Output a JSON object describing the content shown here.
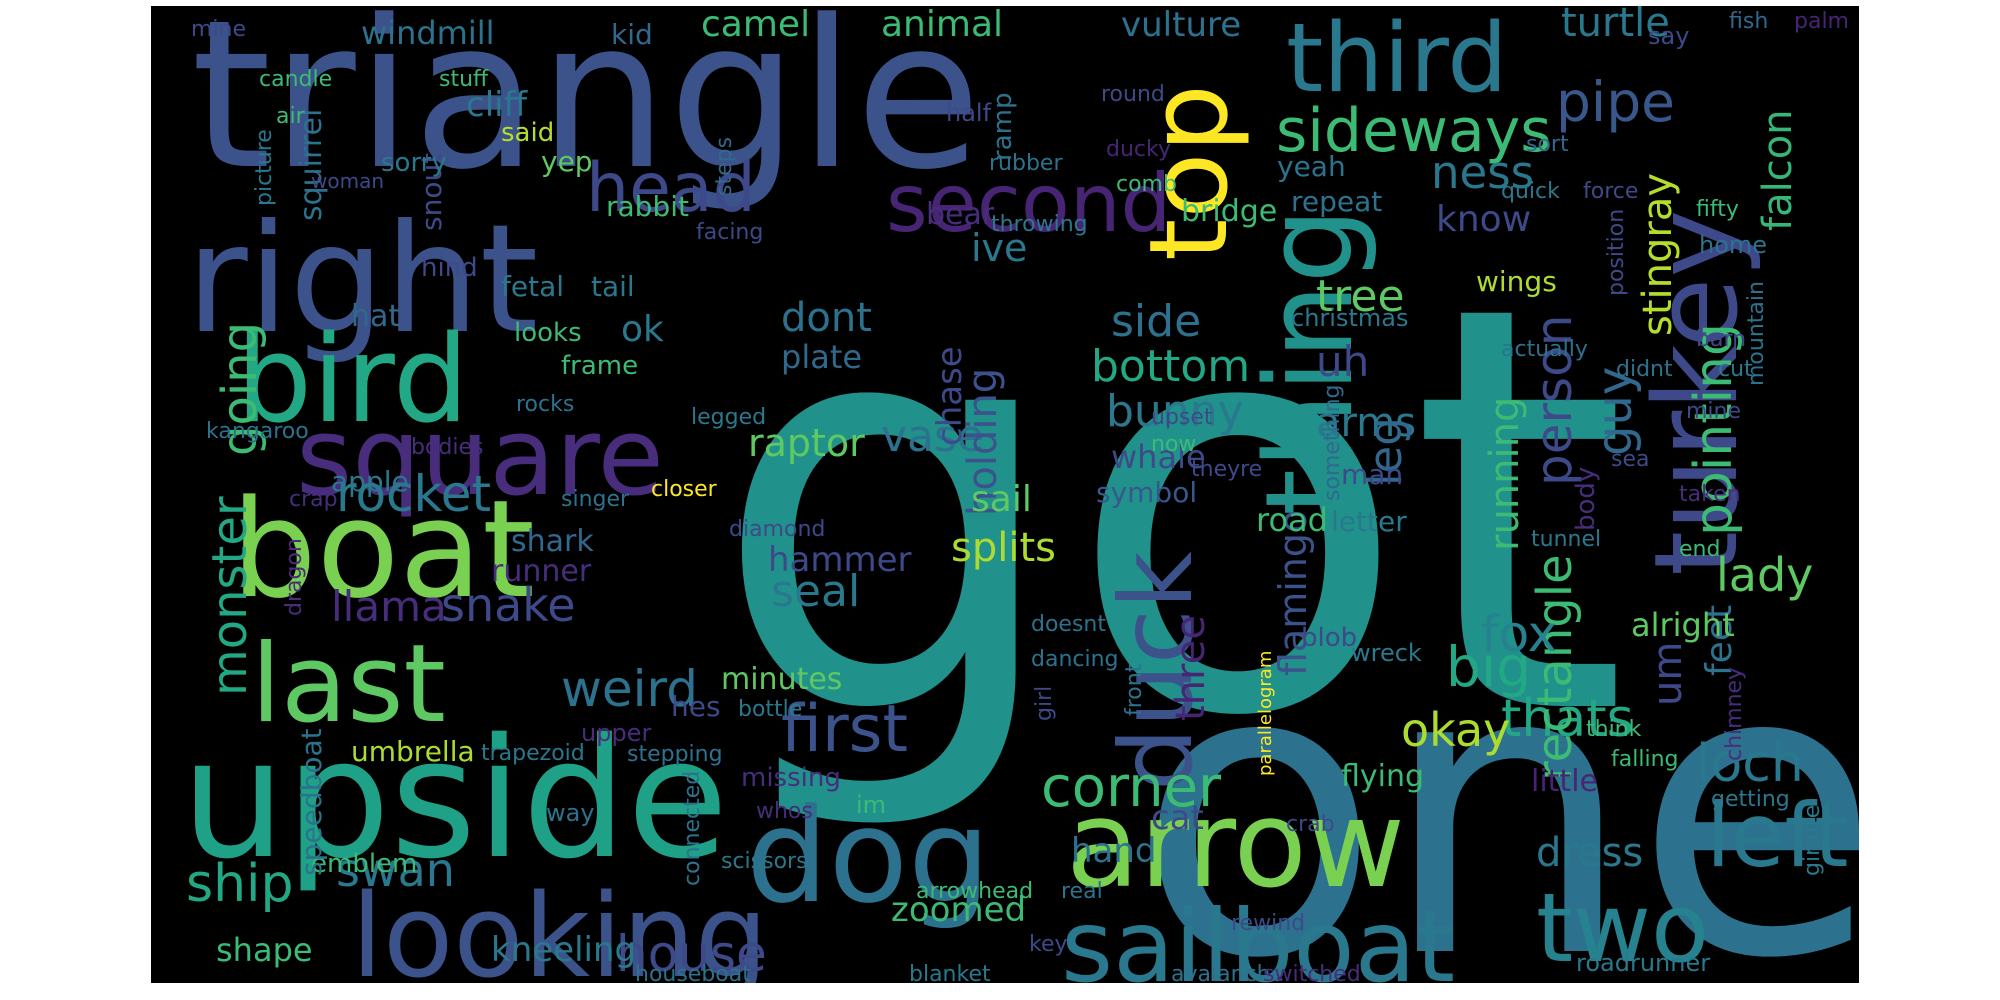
{
  "palette": {
    "teal": "#21918c",
    "teal_dark": "#2c728e",
    "blue": "#3b528b",
    "indigo": "#472d7b",
    "purple": "#440154",
    "green": "#5ec962",
    "lime": "#addc30",
    "yellow": "#fde725",
    "seagreen": "#28ae80",
    "navy": "#31688e"
  },
  "words": [
    {
      "text": "got",
      "color": "#21918c"
    },
    {
      "text": "one",
      "color": "#2c728e"
    },
    {
      "text": "triangle",
      "color": "#3b528b"
    },
    {
      "text": "right",
      "color": "#3b528b"
    },
    {
      "text": "boat",
      "color": "#7ad151"
    },
    {
      "text": "upside",
      "color": "#1fa187"
    },
    {
      "text": "bird",
      "color": "#22a884"
    },
    {
      "text": "square",
      "color": "#472d7b"
    },
    {
      "text": "last",
      "color": "#5ec962"
    },
    {
      "text": "dog",
      "color": "#2c728e"
    },
    {
      "text": "looking",
      "color": "#3b528b"
    },
    {
      "text": "arrow",
      "color": "#7ad151"
    },
    {
      "text": "sailboat",
      "color": "#2a788e"
    },
    {
      "text": "thing",
      "color": "#21918c"
    },
    {
      "text": "turkey",
      "color": "#3e4989"
    },
    {
      "text": "top",
      "color": "#fde725"
    },
    {
      "text": "third",
      "color": "#2a788e"
    },
    {
      "text": "second",
      "color": "#482475"
    },
    {
      "text": "head",
      "color": "#3e4989"
    },
    {
      "text": "duck",
      "color": "#3b528b"
    },
    {
      "text": "two",
      "color": "#26828e"
    },
    {
      "text": "left",
      "color": "#2a788e"
    },
    {
      "text": "sideways",
      "color": "#3cbb75"
    },
    {
      "text": "pipe",
      "color": "#38588c"
    },
    {
      "text": "turtle",
      "color": "#2a788e"
    },
    {
      "text": "falcon",
      "color": "#35b779"
    },
    {
      "text": "ness",
      "color": "#2a788e"
    },
    {
      "text": "know",
      "color": "#3e4989"
    },
    {
      "text": "first",
      "color": "#3b528b"
    },
    {
      "text": "weird",
      "color": "#2c728e"
    },
    {
      "text": "thats",
      "color": "#22a884"
    },
    {
      "text": "pointing",
      "color": "#3cbb75"
    },
    {
      "text": "stingray",
      "color": "#b5de2b"
    },
    {
      "text": "person",
      "color": "#3e4989"
    },
    {
      "text": "guy",
      "color": "#31688e"
    },
    {
      "text": "rectangle",
      "color": "#3cbb75"
    },
    {
      "text": "loch",
      "color": "#2a788e"
    },
    {
      "text": "lady",
      "color": "#5ec962"
    },
    {
      "text": "big",
      "color": "#22a884"
    },
    {
      "text": "okay",
      "color": "#addc30"
    },
    {
      "text": "corner",
      "color": "#3cbb75"
    },
    {
      "text": "fox",
      "color": "#26828e"
    },
    {
      "text": "house",
      "color": "#3e4989"
    },
    {
      "text": "ship",
      "color": "#22a884"
    },
    {
      "text": "swan",
      "color": "#2a788e"
    },
    {
      "text": "rocket",
      "color": "#2a788e"
    },
    {
      "text": "monster",
      "color": "#22a884"
    },
    {
      "text": "going",
      "color": "#3cbb75"
    },
    {
      "text": "snake",
      "color": "#3e4989"
    },
    {
      "text": "llama",
      "color": "#472d7b"
    },
    {
      "text": "vase",
      "color": "#2c728e"
    },
    {
      "text": "raptor",
      "color": "#5ec962"
    },
    {
      "text": "seal",
      "color": "#2a788e"
    },
    {
      "text": "splits",
      "color": "#addc30"
    },
    {
      "text": "hammer",
      "color": "#3e4989"
    },
    {
      "text": "bottom",
      "color": "#22a884"
    },
    {
      "text": "bunny",
      "color": "#2a788e"
    },
    {
      "text": "side",
      "color": "#2c728e"
    },
    {
      "text": "tree",
      "color": "#5ec962"
    },
    {
      "text": "uh",
      "color": "#3e4989"
    },
    {
      "text": "arms",
      "color": "#2a788e"
    },
    {
      "text": "leg",
      "color": "#31688e"
    },
    {
      "text": "running",
      "color": "#3cbb75"
    },
    {
      "text": "flamingo",
      "color": "#3b528b"
    },
    {
      "text": "three",
      "color": "#482475"
    },
    {
      "text": "holding",
      "color": "#3b528b"
    },
    {
      "text": "chase",
      "color": "#3e4989"
    },
    {
      "text": "ive",
      "color": "#2a788e"
    },
    {
      "text": "dont",
      "color": "#2c728e"
    },
    {
      "text": "plate",
      "color": "#31688e"
    },
    {
      "text": "whale",
      "color": "#3e4989"
    },
    {
      "text": "symbol",
      "color": "#38588c"
    },
    {
      "text": "sail",
      "color": "#5ec962"
    },
    {
      "text": "windmill",
      "color": "#2c728e"
    },
    {
      "text": "camel",
      "color": "#3cbb75"
    },
    {
      "text": "animal",
      "color": "#3cbb75"
    },
    {
      "text": "vulture",
      "color": "#2c728e"
    },
    {
      "text": "kid",
      "color": "#31688e"
    },
    {
      "text": "cliff",
      "color": "#2a788e"
    },
    {
      "text": "squirrel",
      "color": "#2c728e"
    },
    {
      "text": "snout",
      "color": "#3e4989"
    },
    {
      "text": "hat",
      "color": "#31688e"
    },
    {
      "text": "ok",
      "color": "#2a788e"
    },
    {
      "text": "apple",
      "color": "#2a788e"
    },
    {
      "text": "shark",
      "color": "#31688e"
    },
    {
      "text": "runner",
      "color": "#472d7b"
    },
    {
      "text": "umbrella",
      "color": "#addc30"
    },
    {
      "text": "emblem",
      "color": "#3cbb75"
    },
    {
      "text": "speedboat",
      "color": "#2c728e"
    },
    {
      "text": "shape",
      "color": "#3cbb75"
    },
    {
      "text": "kneeling",
      "color": "#2a788e"
    },
    {
      "text": "zoomed",
      "color": "#3cbb75"
    },
    {
      "text": "hand",
      "color": "#2c728e"
    },
    {
      "text": "cat",
      "color": "#3e4989"
    },
    {
      "text": "road",
      "color": "#3cbb75"
    },
    {
      "text": "letter",
      "color": "#2a788e"
    },
    {
      "text": "feet",
      "color": "#2c728e"
    },
    {
      "text": "dress",
      "color": "#2a788e"
    },
    {
      "text": "um",
      "color": "#3e4989"
    },
    {
      "text": "alright",
      "color": "#5ec962"
    },
    {
      "text": "flying",
      "color": "#3cbb75"
    },
    {
      "text": "little",
      "color": "#482475"
    },
    {
      "text": "mine",
      "color": "#3e4989"
    },
    {
      "text": "fish",
      "color": "#31688e"
    },
    {
      "text": "say",
      "color": "#3e4989"
    },
    {
      "text": "palm",
      "color": "#482475"
    },
    {
      "text": "candle",
      "color": "#3cbb75"
    },
    {
      "text": "stuff",
      "color": "#3cbb75"
    },
    {
      "text": "air",
      "color": "#3cbb75"
    },
    {
      "text": "said",
      "color": "#b5de2b"
    },
    {
      "text": "sorry",
      "color": "#2a788e"
    },
    {
      "text": "yep",
      "color": "#5ec962"
    },
    {
      "text": "rabbit",
      "color": "#3cbb75"
    },
    {
      "text": "ramp",
      "color": "#2c728e"
    },
    {
      "text": "half",
      "color": "#3e4989"
    },
    {
      "text": "round",
      "color": "#3e4989"
    },
    {
      "text": "ducky",
      "color": "#482475"
    },
    {
      "text": "comb",
      "color": "#3cbb75"
    },
    {
      "text": "rubber",
      "color": "#2c728e"
    },
    {
      "text": "yeah",
      "color": "#2c728e"
    },
    {
      "text": "repeat",
      "color": "#2c728e"
    },
    {
      "text": "bear",
      "color": "#472d7b"
    },
    {
      "text": "throwing",
      "color": "#2a788e"
    },
    {
      "text": "bridge",
      "color": "#3cbb75"
    },
    {
      "text": "wings",
      "color": "#addc30"
    },
    {
      "text": "christmas",
      "color": "#2a788e"
    },
    {
      "text": "sort",
      "color": "#31688e"
    },
    {
      "text": "quick",
      "color": "#2a788e"
    },
    {
      "text": "force",
      "color": "#3e4989"
    },
    {
      "text": "fifty",
      "color": "#3cbb75"
    },
    {
      "text": "home",
      "color": "#2c728e"
    },
    {
      "text": "position",
      "color": "#3e4989"
    },
    {
      "text": "barn",
      "color": "#3e4989"
    },
    {
      "text": "cut",
      "color": "#2a788e"
    },
    {
      "text": "mountain",
      "color": "#2c728e"
    },
    {
      "text": "didnt",
      "color": "#2c728e"
    },
    {
      "text": "mine2",
      "color": "#3e4989"
    },
    {
      "text": "actually",
      "color": "#2c728e"
    },
    {
      "text": "picture",
      "color": "#2a788e"
    },
    {
      "text": "woman",
      "color": "#3e4989"
    },
    {
      "text": "steps",
      "color": "#31688e"
    },
    {
      "text": "facing",
      "color": "#3e4989"
    },
    {
      "text": "hind",
      "color": "#3e4989"
    },
    {
      "text": "fetal",
      "color": "#2a788e"
    },
    {
      "text": "tail",
      "color": "#2a788e"
    },
    {
      "text": "looks",
      "color": "#3cbb75"
    },
    {
      "text": "frame",
      "color": "#3cbb75"
    },
    {
      "text": "rocks",
      "color": "#2c728e"
    },
    {
      "text": "kangaroo",
      "color": "#2c728e"
    },
    {
      "text": "bodies",
      "color": "#472d7b"
    },
    {
      "text": "crap",
      "color": "#472d7b"
    },
    {
      "text": "dragon",
      "color": "#472d7b"
    },
    {
      "text": "singer",
      "color": "#2c728e"
    },
    {
      "text": "closer",
      "color": "#fde725"
    },
    {
      "text": "diamond",
      "color": "#3e4989"
    },
    {
      "text": "legged",
      "color": "#2a788e"
    },
    {
      "text": "upset",
      "color": "#3e4989"
    },
    {
      "text": "now",
      "color": "#3cbb75"
    },
    {
      "text": "theyre",
      "color": "#3e4989"
    },
    {
      "text": "something",
      "color": "#31688e"
    },
    {
      "text": "man",
      "color": "#3e4989"
    },
    {
      "text": "body",
      "color": "#472d7b"
    },
    {
      "text": "sea",
      "color": "#3e4989"
    },
    {
      "text": "tunnel",
      "color": "#2a788e"
    },
    {
      "text": "taken",
      "color": "#472d7b"
    },
    {
      "text": "end",
      "color": "#3cbb75"
    },
    {
      "text": "chimney",
      "color": "#472d7b"
    },
    {
      "text": "minutes",
      "color": "#5ec962"
    },
    {
      "text": "hes",
      "color": "#3e4989"
    },
    {
      "text": "bottle",
      "color": "#2a788e"
    },
    {
      "text": "upper",
      "color": "#472d7b"
    },
    {
      "text": "trapezoid",
      "color": "#2a788e"
    },
    {
      "text": "stepping",
      "color": "#2c728e"
    },
    {
      "text": "missing",
      "color": "#472d7b"
    },
    {
      "text": "connected",
      "color": "#2c728e"
    },
    {
      "text": "way",
      "color": "#2c728e"
    },
    {
      "text": "whos",
      "color": "#472d7b"
    },
    {
      "text": "im",
      "color": "#3cbb75"
    },
    {
      "text": "scissors",
      "color": "#2a788e"
    },
    {
      "text": "doesnt",
      "color": "#2c728e"
    },
    {
      "text": "dancing",
      "color": "#2c728e"
    },
    {
      "text": "girl",
      "color": "#3e4989"
    },
    {
      "text": "front",
      "color": "#2c728e"
    },
    {
      "text": "parallelogram",
      "color": "#fde725"
    },
    {
      "text": "wreck",
      "color": "#2a788e"
    },
    {
      "text": "blob",
      "color": "#3e4989"
    },
    {
      "text": "crab",
      "color": "#3e4989"
    },
    {
      "text": "think",
      "color": "#3cbb75"
    },
    {
      "text": "falling",
      "color": "#3cbb75"
    },
    {
      "text": "getting",
      "color": "#2a788e"
    },
    {
      "text": "giraffe",
      "color": "#2a788e"
    },
    {
      "text": "arrowhead",
      "color": "#3cbb75"
    },
    {
      "text": "real",
      "color": "#2c728e"
    },
    {
      "text": "rewind",
      "color": "#3e4989"
    },
    {
      "text": "houseboat",
      "color": "#2c728e"
    },
    {
      "text": "blanket",
      "color": "#2a788e"
    },
    {
      "text": "key",
      "color": "#3e4989"
    },
    {
      "text": "avalanche",
      "color": "#2c728e"
    },
    {
      "text": "switched",
      "color": "#472d7b"
    },
    {
      "text": "roadrunner",
      "color": "#2a788e"
    }
  ]
}
